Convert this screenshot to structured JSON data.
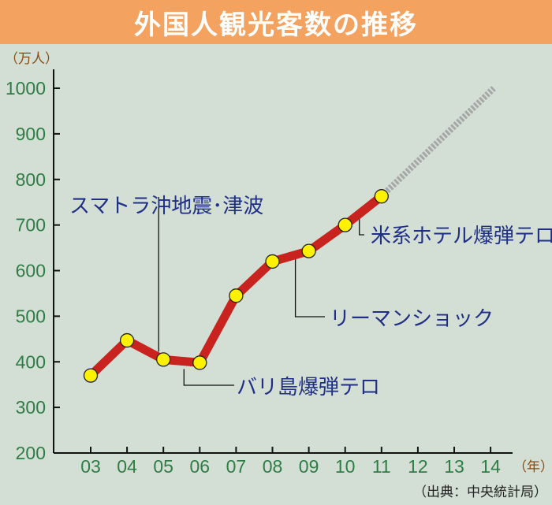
{
  "title": "外国人観光客数の推移",
  "source": "（出典：中央統計局）",
  "colors": {
    "header": "#f4a25f",
    "background": "#d3dfd4",
    "line": "#c8231e",
    "marker": "#fff200",
    "projection": "#a7a7a7",
    "tick_text": "#2e7d45",
    "annotation_text": "#1f2f85"
  },
  "chart_data": {
    "type": "line",
    "title": "外国人観光客数の推移",
    "y_unit": "（万人）",
    "x_unit": "（年）",
    "ylim": [
      200,
      1000
    ],
    "yticks": [
      200,
      300,
      400,
      500,
      600,
      700,
      800,
      900,
      1000
    ],
    "categories": [
      "03",
      "04",
      "05",
      "06",
      "07",
      "08",
      "09",
      "10",
      "11",
      "12",
      "13",
      "14"
    ],
    "series": [
      {
        "x": [
          "03",
          "04",
          "05",
          "06",
          "07",
          "08",
          "09",
          "10",
          "11"
        ],
        "values": [
          370,
          447,
          405,
          398,
          545,
          620,
          643,
          700,
          763
        ]
      }
    ],
    "projection": {
      "from": [
        "11",
        763
      ],
      "to": [
        "14",
        1000
      ]
    },
    "grid": false,
    "annotations": [
      {
        "text": "スマトラ沖地震･津波",
        "x": "05",
        "value": 405
      },
      {
        "text": "バリ島爆弾テロ",
        "x": "06",
        "value": 398
      },
      {
        "text": "リーマンショック",
        "x": "09",
        "value": 643
      },
      {
        "text": "米系ホテル爆弾テロ",
        "x": "10",
        "value": 700
      }
    ]
  }
}
